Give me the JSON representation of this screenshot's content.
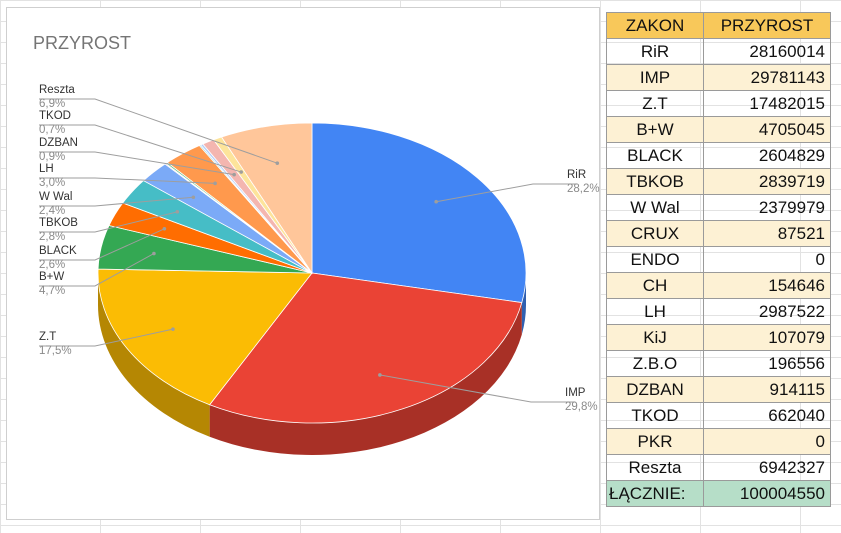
{
  "colors": {
    "header_bg": "#f8c85a",
    "alt_row_bg": "#fdf1d4",
    "total_row_bg": "#b6dec8"
  },
  "table": {
    "headers": [
      "ZAKON",
      "PRZYROST"
    ],
    "rows": [
      {
        "name": "RiR",
        "value": "28160014"
      },
      {
        "name": "IMP",
        "value": "29781143"
      },
      {
        "name": "Z.T",
        "value": "17482015"
      },
      {
        "name": "B+W",
        "value": "4705045"
      },
      {
        "name": "BLACK",
        "value": "2604829"
      },
      {
        "name": "TBKOB",
        "value": "2839719"
      },
      {
        "name": "W Wal",
        "value": "2379979"
      },
      {
        "name": "CRUX",
        "value": "87521"
      },
      {
        "name": "ENDO",
        "value": "0"
      },
      {
        "name": "CH",
        "value": "154646"
      },
      {
        "name": "LH",
        "value": "2987522"
      },
      {
        "name": "KiJ",
        "value": "107079"
      },
      {
        "name": "Z.B.O",
        "value": "196556"
      },
      {
        "name": "DZBAN",
        "value": "914115"
      },
      {
        "name": "TKOD",
        "value": "662040"
      },
      {
        "name": "PKR",
        "value": "0"
      },
      {
        "name": "Reszta",
        "value": "6942327"
      }
    ],
    "total": {
      "name": "ŁĄCZNIE:",
      "value": "100004550"
    }
  },
  "chart_data": {
    "type": "pie",
    "title": "PRZYROST",
    "style": "3d",
    "slices": [
      {
        "label": "RiR",
        "value": 28160014,
        "pct": "28,2%",
        "color": "#4285f4",
        "labeled": true
      },
      {
        "label": "IMP",
        "value": 29781143,
        "pct": "29,8%",
        "color": "#ea4335",
        "labeled": true
      },
      {
        "label": "Z.T",
        "value": 17482015,
        "pct": "17,5%",
        "color": "#fbbc04",
        "labeled": true
      },
      {
        "label": "B+W",
        "value": 4705045,
        "pct": "4,7%",
        "color": "#34a853",
        "labeled": true
      },
      {
        "label": "BLACK",
        "value": 2604829,
        "pct": "2,6%",
        "color": "#ff6d01",
        "labeled": true
      },
      {
        "label": "TBKOB",
        "value": 2839719,
        "pct": "2,8%",
        "color": "#46bdc6",
        "labeled": true
      },
      {
        "label": "W Wal",
        "value": 2379979,
        "pct": "2,4%",
        "color": "#7baaf7",
        "labeled": true
      },
      {
        "label": "CRUX",
        "value": 87521,
        "color": "#f07b72",
        "labeled": false
      },
      {
        "label": "ENDO",
        "value": 0,
        "color": "#fcd04f",
        "labeled": false
      },
      {
        "label": "CH",
        "value": 154646,
        "color": "#71c287",
        "labeled": false
      },
      {
        "label": "LH",
        "value": 2987522,
        "pct": "3,0%",
        "color": "#ff994d",
        "labeled": true
      },
      {
        "label": "KiJ",
        "value": 107079,
        "color": "#7ed1d7",
        "labeled": false
      },
      {
        "label": "Z.B.O",
        "value": 196556,
        "color": "#b3cefb",
        "labeled": false
      },
      {
        "label": "DZBAN",
        "value": 914115,
        "pct": "0,9%",
        "color": "#f4b6b0",
        "labeled": true
      },
      {
        "label": "TKOD",
        "value": 662040,
        "pct": "0,7%",
        "color": "#fde49b",
        "labeled": true
      },
      {
        "label": "PKR",
        "value": 0,
        "color": "#a8dab5",
        "labeled": false
      },
      {
        "label": "Reszta",
        "value": 6942327,
        "pct": "6,9%",
        "color": "#ffc69a",
        "labeled": true
      }
    ]
  }
}
